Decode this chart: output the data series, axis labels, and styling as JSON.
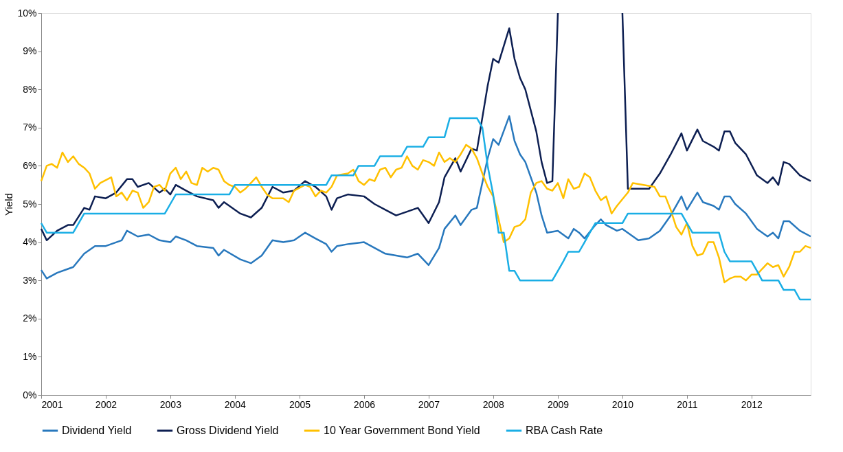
{
  "chart_data": {
    "type": "line",
    "ylabel": "Yield",
    "xlim": [
      "2001-01",
      "2012-12"
    ],
    "xticks": [
      "2001",
      "2002",
      "2003",
      "2004",
      "2005",
      "2006",
      "2007",
      "2008",
      "2009",
      "2010",
      "2011",
      "2012"
    ],
    "ylim": [
      0,
      10
    ],
    "yticks": [
      {
        "value": 0,
        "label": "0%"
      },
      {
        "value": 1,
        "label": "1%"
      },
      {
        "value": 2,
        "label": "2%"
      },
      {
        "value": 3,
        "label": "3%"
      },
      {
        "value": 4,
        "label": "4%"
      },
      {
        "value": 5,
        "label": "5%"
      },
      {
        "value": 6,
        "label": "6%"
      },
      {
        "value": 7,
        "label": "7%"
      },
      {
        "value": 8,
        "label": "8%"
      },
      {
        "value": 9,
        "label": "9%"
      },
      {
        "value": 10,
        "label": "10%"
      }
    ],
    "grid": false,
    "legend": "bottom",
    "marker": "none",
    "line_style": "solid",
    "series": [
      {
        "name": "Dividend Yield",
        "color": "#2878bd",
        "x": [
          "2001-01",
          "2001-02",
          "2001-04",
          "2001-06",
          "2001-07",
          "2001-09",
          "2001-11",
          "2002-01",
          "2002-04",
          "2002-05",
          "2002-07",
          "2002-09",
          "2002-11",
          "2003-01",
          "2003-02",
          "2003-04",
          "2003-06",
          "2003-09",
          "2003-10",
          "2003-11",
          "2004-02",
          "2004-04",
          "2004-06",
          "2004-08",
          "2004-10",
          "2004-12",
          "2005-02",
          "2005-04",
          "2005-06",
          "2005-07",
          "2005-08",
          "2005-10",
          "2006-01",
          "2006-03",
          "2006-05",
          "2006-07",
          "2006-09",
          "2006-11",
          "2007-01",
          "2007-03",
          "2007-04",
          "2007-06",
          "2007-07",
          "2007-09",
          "2007-10",
          "2007-12",
          "2008-01",
          "2008-02",
          "2008-04",
          "2008-05",
          "2008-06",
          "2008-07",
          "2008-09",
          "2008-10",
          "2008-11",
          "2009-01",
          "2009-03",
          "2009-04",
          "2009-05",
          "2009-06",
          "2009-08",
          "2009-09",
          "2009-10",
          "2009-12",
          "2010-01",
          "2010-04",
          "2010-06",
          "2010-08",
          "2010-10",
          "2010-12",
          "2011-01",
          "2011-03",
          "2011-04",
          "2011-06",
          "2011-07",
          "2011-08",
          "2011-09",
          "2011-10",
          "2011-12",
          "2012-02",
          "2012-04",
          "2012-05",
          "2012-06",
          "2012-07",
          "2012-08",
          "2012-10",
          "2012-12"
        ],
        "values": [
          3.27,
          3.05,
          3.2,
          3.3,
          3.35,
          3.7,
          3.9,
          3.9,
          4.05,
          4.3,
          4.15,
          4.2,
          4.05,
          4.0,
          4.15,
          4.05,
          3.9,
          3.85,
          3.65,
          3.8,
          3.55,
          3.45,
          3.65,
          4.05,
          4.0,
          4.05,
          4.25,
          4.1,
          3.95,
          3.75,
          3.9,
          3.95,
          4.0,
          3.85,
          3.7,
          3.65,
          3.6,
          3.7,
          3.4,
          3.85,
          4.35,
          4.7,
          4.45,
          4.85,
          4.9,
          6.2,
          6.7,
          6.55,
          7.3,
          6.65,
          6.3,
          6.1,
          5.3,
          4.7,
          4.25,
          4.3,
          4.1,
          4.35,
          4.25,
          4.1,
          4.45,
          4.6,
          4.45,
          4.3,
          4.35,
          4.05,
          4.1,
          4.3,
          4.7,
          5.2,
          4.85,
          5.3,
          5.05,
          4.95,
          4.85,
          5.2,
          5.2,
          5.0,
          4.75,
          4.35,
          4.15,
          4.25,
          4.1,
          4.55,
          4.55,
          4.3,
          4.15
        ]
      },
      {
        "name": "Gross Dividend Yield",
        "color": "#0d1f52",
        "x": [
          "2001-01",
          "2001-02",
          "2001-04",
          "2001-06",
          "2001-07",
          "2001-09",
          "2001-10",
          "2001-11",
          "2002-01",
          "2002-03",
          "2002-05",
          "2002-06",
          "2002-07",
          "2002-09",
          "2002-11",
          "2002-12",
          "2003-01",
          "2003-02",
          "2003-04",
          "2003-06",
          "2003-09",
          "2003-10",
          "2003-11",
          "2004-02",
          "2004-04",
          "2004-06",
          "2004-08",
          "2004-10",
          "2004-12",
          "2005-02",
          "2005-04",
          "2005-06",
          "2005-07",
          "2005-08",
          "2005-10",
          "2006-01",
          "2006-03",
          "2006-05",
          "2006-07",
          "2006-09",
          "2006-11",
          "2007-01",
          "2007-03",
          "2007-04",
          "2007-06",
          "2007-07",
          "2007-09",
          "2007-10",
          "2007-12",
          "2008-01",
          "2008-02",
          "2008-04",
          "2008-05",
          "2008-06",
          "2008-07",
          "2008-09",
          "2008-10",
          "2008-11",
          "2008-12",
          "2009-01",
          "2009-02",
          "2009-12",
          "2010-01",
          "2010-02",
          "2010-04",
          "2010-06",
          "2010-08",
          "2010-10",
          "2010-12",
          "2011-01",
          "2011-03",
          "2011-04",
          "2011-06",
          "2011-07",
          "2011-08",
          "2011-09",
          "2011-10",
          "2011-12",
          "2012-02",
          "2012-04",
          "2012-05",
          "2012-06",
          "2012-07",
          "2012-08",
          "2012-10",
          "2012-12"
        ],
        "values": [
          4.35,
          4.05,
          4.3,
          4.45,
          4.45,
          4.9,
          4.85,
          5.2,
          5.15,
          5.3,
          5.65,
          5.65,
          5.45,
          5.55,
          5.3,
          5.4,
          5.25,
          5.5,
          5.35,
          5.2,
          5.1,
          4.9,
          5.05,
          4.75,
          4.65,
          4.9,
          5.45,
          5.3,
          5.35,
          5.6,
          5.45,
          5.2,
          4.85,
          5.15,
          5.25,
          5.2,
          5.0,
          4.85,
          4.7,
          4.8,
          4.9,
          4.5,
          5.05,
          5.7,
          6.2,
          5.85,
          6.45,
          6.4,
          8.1,
          8.8,
          8.7,
          9.6,
          8.8,
          8.3,
          8.0,
          6.9,
          6.1,
          5.55,
          5.6,
          10,
          null,
          null,
          10,
          5.4,
          5.4,
          5.4,
          5.8,
          6.3,
          6.85,
          6.4,
          6.95,
          6.65,
          6.5,
          6.4,
          6.9,
          6.9,
          6.6,
          6.3,
          5.75,
          5.55,
          5.7,
          5.5,
          6.1,
          6.05,
          5.75,
          5.6
        ]
      },
      {
        "name": "10 Year Government Bond Yield",
        "color": "#ffc000",
        "x": [
          "2001-01",
          "2001-02",
          "2001-03",
          "2001-04",
          "2001-05",
          "2001-06",
          "2001-07",
          "2001-08",
          "2001-09",
          "2001-10",
          "2001-11",
          "2001-12",
          "2002-02",
          "2002-03",
          "2002-04",
          "2002-05",
          "2002-06",
          "2002-07",
          "2002-08",
          "2002-09",
          "2002-10",
          "2002-11",
          "2002-12",
          "2003-01",
          "2003-02",
          "2003-03",
          "2003-04",
          "2003-05",
          "2003-06",
          "2003-07",
          "2003-08",
          "2003-09",
          "2003-10",
          "2003-11",
          "2003-12",
          "2004-01",
          "2004-02",
          "2004-03",
          "2004-05",
          "2004-06",
          "2004-07",
          "2004-08",
          "2004-10",
          "2004-11",
          "2004-12",
          "2005-02",
          "2005-03",
          "2005-04",
          "2005-05",
          "2005-06",
          "2005-07",
          "2005-08",
          "2005-10",
          "2005-11",
          "2005-12",
          "2006-01",
          "2006-02",
          "2006-03",
          "2006-04",
          "2006-05",
          "2006-06",
          "2006-07",
          "2006-08",
          "2006-09",
          "2006-10",
          "2006-11",
          "2006-12",
          "2007-01",
          "2007-02",
          "2007-03",
          "2007-04",
          "2007-05",
          "2007-06",
          "2007-07",
          "2007-08",
          "2007-09",
          "2007-10",
          "2007-11",
          "2007-12",
          "2008-01",
          "2008-02",
          "2008-03",
          "2008-04",
          "2008-05",
          "2008-06",
          "2008-07",
          "2008-08",
          "2008-09",
          "2008-10",
          "2008-11",
          "2008-12",
          "2009-01",
          "2009-02",
          "2009-03",
          "2009-04",
          "2009-05",
          "2009-06",
          "2009-07",
          "2009-08",
          "2009-09",
          "2009-10",
          "2009-11",
          "2009-12",
          "2010-02",
          "2010-03",
          "2010-05",
          "2010-07",
          "2010-08",
          "2010-09",
          "2010-10",
          "2010-11",
          "2010-12",
          "2011-01",
          "2011-02",
          "2011-03",
          "2011-04",
          "2011-05",
          "2011-06",
          "2011-07",
          "2011-08",
          "2011-09",
          "2011-10",
          "2011-11",
          "2011-12",
          "2012-01",
          "2012-02",
          "2012-03",
          "2012-04",
          "2012-05",
          "2012-06",
          "2012-07",
          "2012-08",
          "2012-09",
          "2012-10",
          "2012-11",
          "2012-12"
        ],
        "values": [
          5.6,
          6.0,
          6.05,
          5.95,
          6.35,
          6.1,
          6.25,
          6.05,
          5.95,
          5.8,
          5.4,
          5.55,
          5.7,
          5.2,
          5.3,
          5.1,
          5.35,
          5.3,
          4.9,
          5.05,
          5.45,
          5.5,
          5.35,
          5.8,
          5.95,
          5.65,
          5.85,
          5.55,
          5.5,
          5.95,
          5.85,
          5.95,
          5.9,
          5.6,
          5.5,
          5.45,
          5.3,
          5.4,
          5.7,
          5.45,
          5.25,
          5.15,
          5.15,
          5.05,
          5.35,
          5.5,
          5.45,
          5.2,
          5.35,
          5.3,
          5.45,
          5.75,
          5.8,
          5.9,
          5.6,
          5.5,
          5.65,
          5.6,
          5.9,
          5.95,
          5.7,
          5.9,
          5.95,
          6.25,
          6.0,
          5.9,
          6.15,
          6.1,
          6.0,
          6.35,
          6.1,
          6.2,
          6.1,
          6.3,
          6.55,
          6.45,
          6.2,
          5.8,
          5.45,
          5.2,
          4.6,
          4.0,
          4.1,
          4.4,
          4.45,
          4.6,
          5.3,
          5.55,
          5.6,
          5.4,
          5.35,
          5.55,
          5.15,
          5.65,
          5.4,
          5.45,
          5.8,
          5.7,
          5.35,
          5.1,
          5.2,
          4.75,
          4.95,
          5.3,
          5.55,
          5.5,
          5.45,
          5.2,
          5.2,
          4.85,
          4.4,
          4.2,
          4.5,
          3.9,
          3.65,
          3.7,
          4.0,
          4.0,
          3.6,
          2.95,
          3.05,
          3.1,
          3.1,
          3.0,
          3.15,
          3.15,
          3.3,
          3.45,
          3.35,
          3.4,
          3.1,
          3.35,
          3.75,
          3.75,
          3.9,
          3.85
        ]
      },
      {
        "name": "RBA Cash Rate",
        "color": "#1aaee5",
        "x": [
          "2001-01",
          "2001-02",
          "2001-07",
          "2001-08",
          "2001-09",
          "2002-12",
          "2003-01",
          "2003-02",
          "2003-12",
          "2004-01",
          "2005-06",
          "2005-07",
          "2005-11",
          "2005-12",
          "2006-03",
          "2006-04",
          "2006-08",
          "2006-09",
          "2006-12",
          "2007-01",
          "2007-04",
          "2007-05",
          "2007-10",
          "2007-11",
          "2007-12",
          "2008-01",
          "2008-02",
          "2008-03",
          "2008-04",
          "2008-05",
          "2008-06",
          "2008-12",
          "2009-01",
          "2009-02",
          "2009-03",
          "2009-05",
          "2009-06",
          "2009-07",
          "2009-08",
          "2010-01",
          "2010-02",
          "2010-12",
          "2011-01",
          "2011-02",
          "2011-07",
          "2011-08",
          "2011-09",
          "2012-01",
          "2012-02",
          "2012-03",
          "2012-06",
          "2012-07",
          "2012-09",
          "2012-10",
          "2012-12"
        ],
        "values": [
          4.5,
          4.25,
          4.25,
          4.5,
          4.75,
          4.75,
          5.0,
          5.25,
          5.25,
          5.5,
          5.5,
          5.75,
          5.75,
          6.0,
          6.0,
          6.25,
          6.25,
          6.5,
          6.5,
          6.75,
          6.75,
          7.25,
          7.25,
          7.0,
          6.0,
          5.25,
          4.25,
          4.25,
          3.25,
          3.25,
          3.0,
          3.0,
          3.25,
          3.5,
          3.75,
          3.75,
          4.0,
          4.25,
          4.5,
          4.5,
          4.75,
          4.75,
          4.5,
          4.25,
          4.25,
          3.75,
          3.5,
          3.5,
          3.25,
          3.0,
          3.0,
          2.75,
          2.75,
          2.5,
          2.5
        ]
      }
    ]
  }
}
